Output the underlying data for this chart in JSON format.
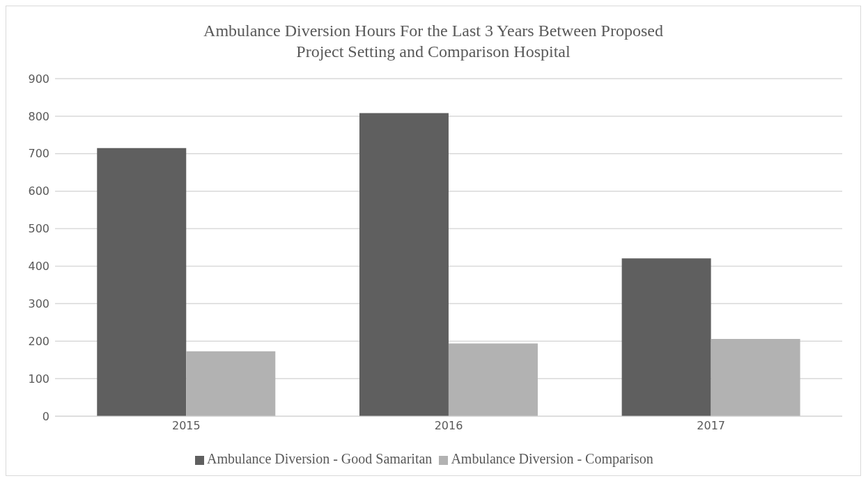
{
  "chart_data": {
    "type": "bar",
    "title": "Ambulance Diversion Hours For the Last 3 Years Between Proposed Project Setting and Comparison Hospital",
    "categories": [
      "2015",
      "2016",
      "2017"
    ],
    "series": [
      {
        "name": "Ambulance Diversion - Good Samaritan",
        "color": "#5f5f5f",
        "values": [
          715,
          808,
          421
        ]
      },
      {
        "name": "Ambulance Diversion - Comparison",
        "color": "#b2b2b2",
        "values": [
          173,
          194,
          206
        ]
      }
    ],
    "ylim": [
      0,
      900
    ],
    "yticks": [
      0,
      100,
      200,
      300,
      400,
      500,
      600,
      700,
      800,
      900
    ],
    "grid": "y",
    "legend": "bottom"
  }
}
